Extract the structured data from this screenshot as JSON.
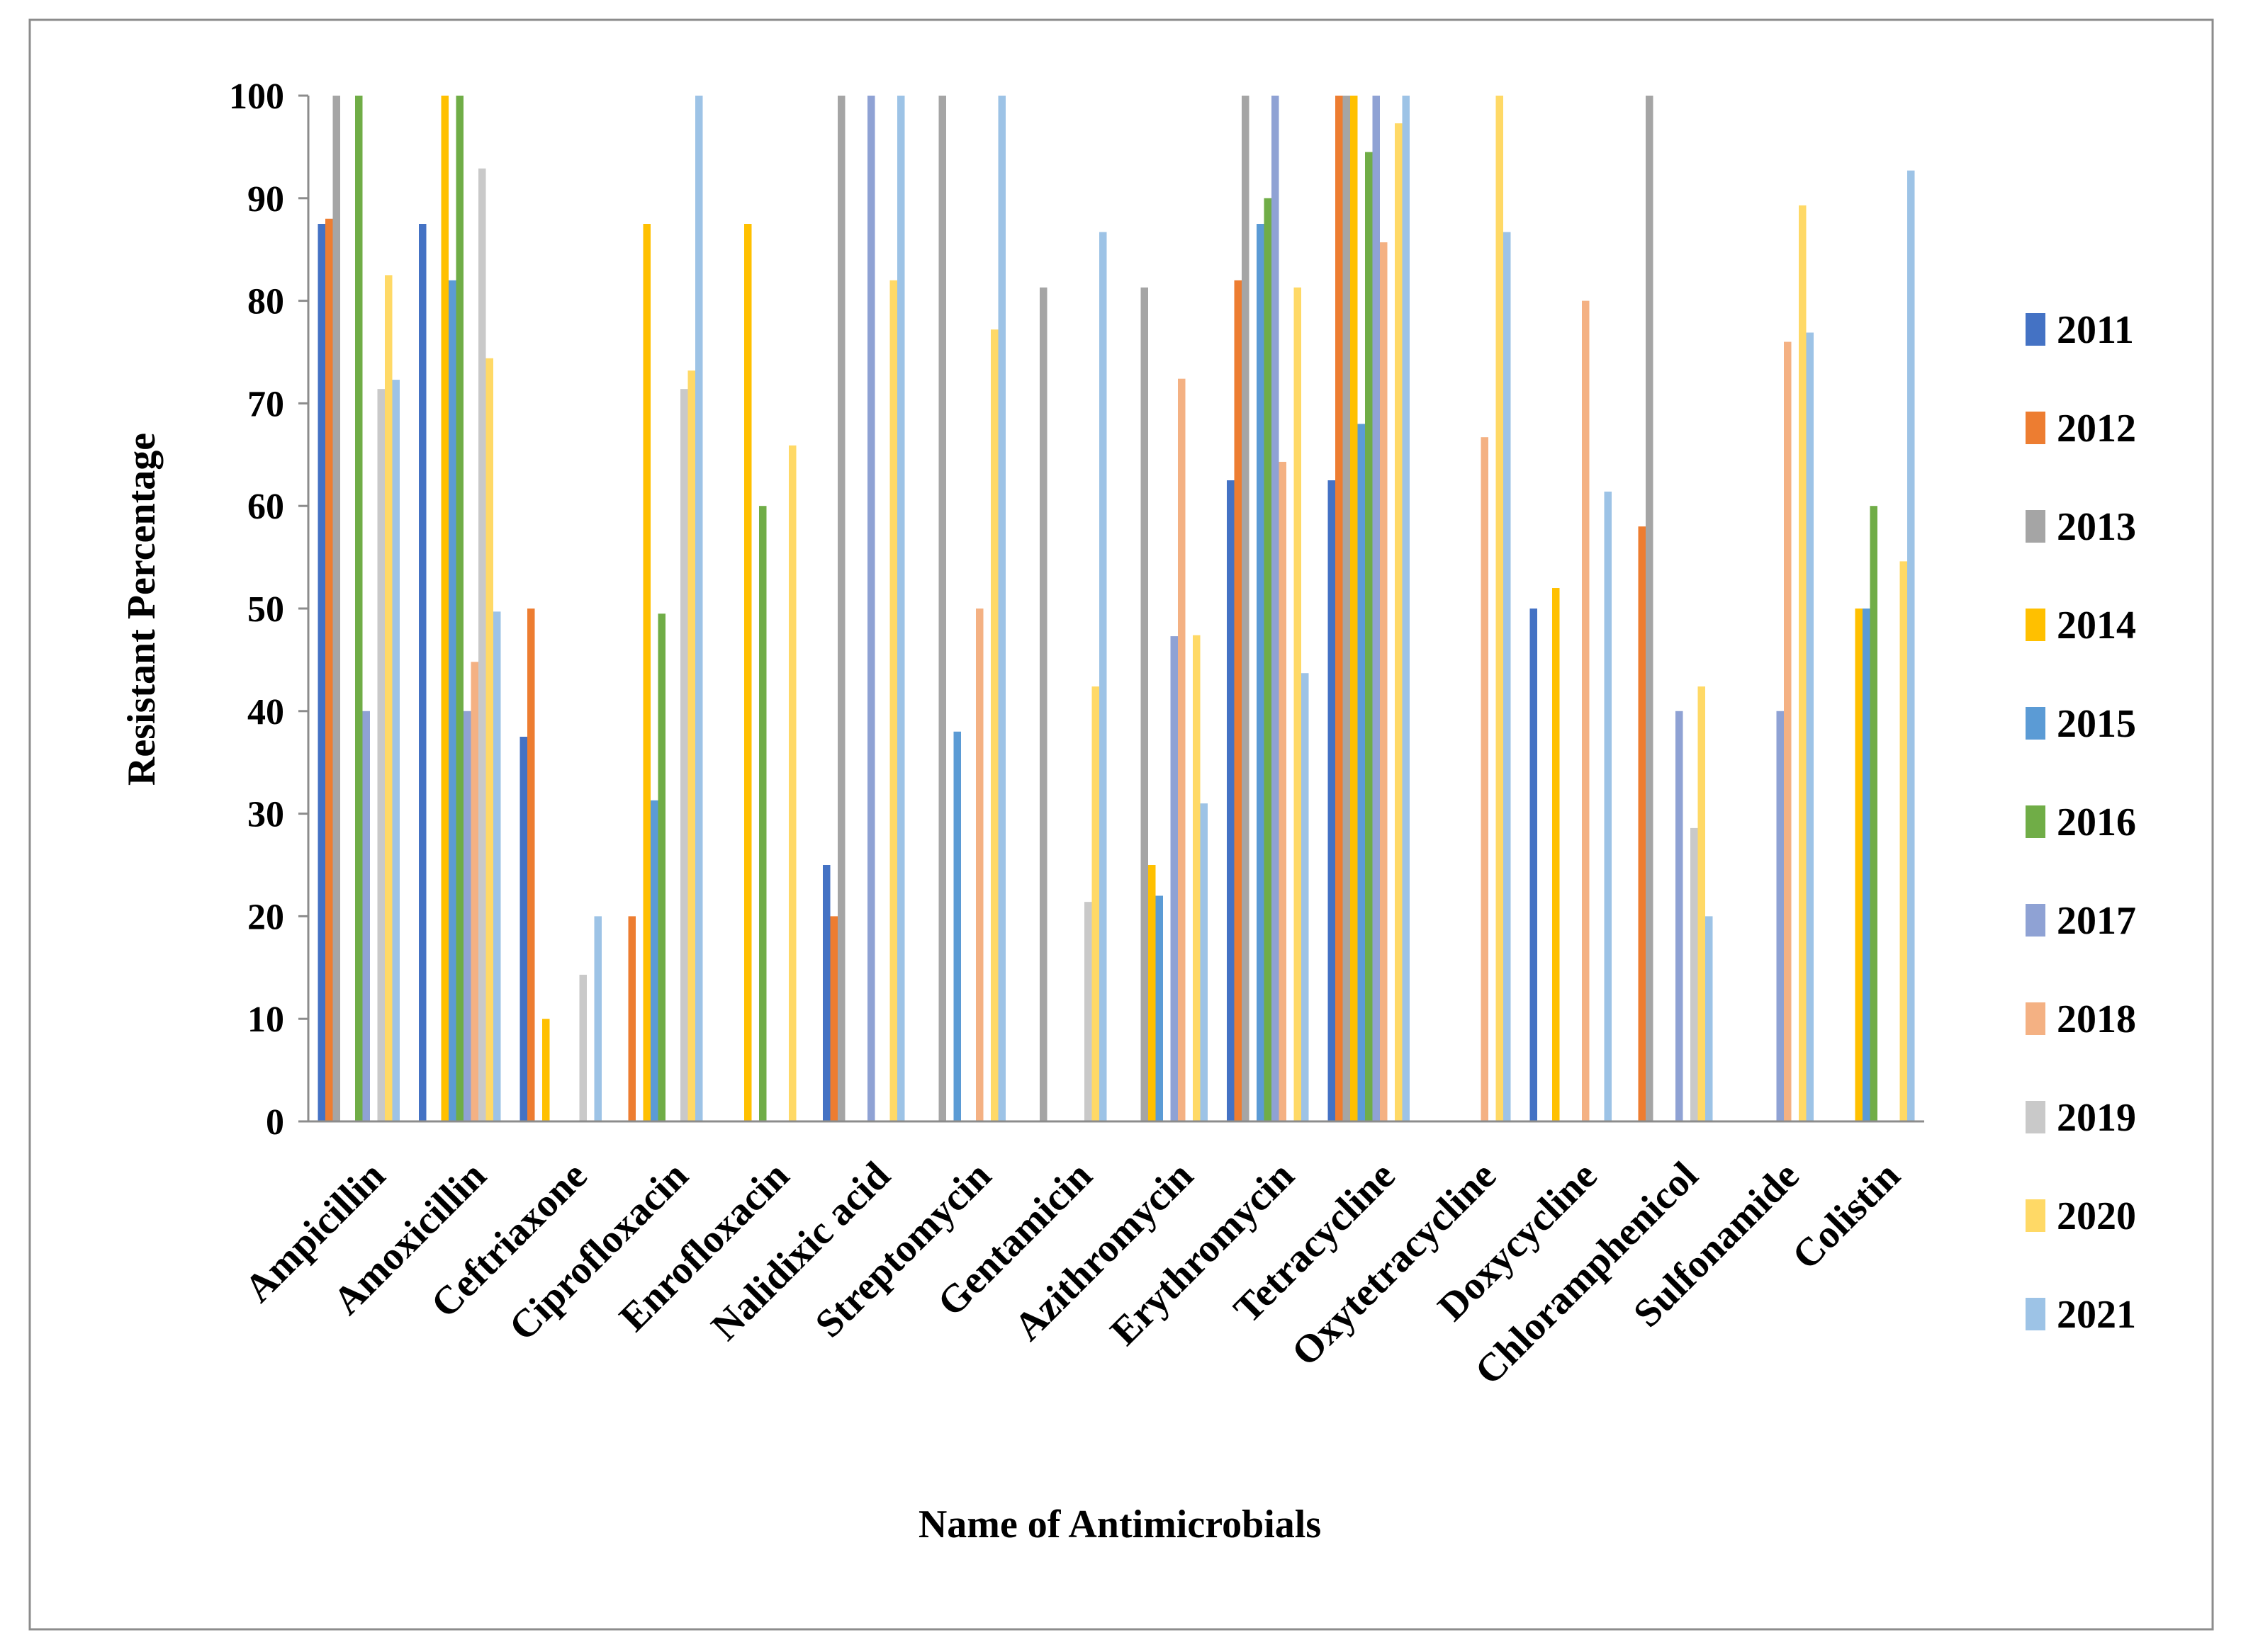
{
  "chart_data": {
    "type": "bar",
    "title": "",
    "xlabel": "Name of Antimicrobials",
    "ylabel": "Resistant Percentage",
    "ylim": [
      0,
      100
    ],
    "yticks": [
      0,
      10,
      20,
      30,
      40,
      50,
      60,
      70,
      80,
      90,
      100
    ],
    "grid": false,
    "legend_position": "right",
    "categories": [
      "Ampicillin",
      "Amoxicillin",
      "Ceftriaxone",
      "Ciprofloxacin",
      "Enrofloxacin",
      "Nalidixic acid",
      "Streptomycin",
      "Gentamicin",
      "Azithromycin",
      "Erythromycin",
      "Tetracycline",
      "Oxytetracycline",
      "Doxycycline",
      "Chloramphenicol",
      "Sulfonamide",
      "Colistin"
    ],
    "series": [
      {
        "name": "2011",
        "color": "#4472C4",
        "values": [
          87.5,
          87.5,
          37.5,
          0,
          0,
          25,
          0,
          0,
          0,
          62.5,
          62.5,
          0,
          50,
          0,
          0,
          0
        ]
      },
      {
        "name": "2012",
        "color": "#ED7D31",
        "values": [
          88,
          0,
          50,
          20,
          0,
          20,
          0,
          0,
          0,
          82,
          100,
          0,
          0,
          58,
          0,
          0
        ]
      },
      {
        "name": "2013",
        "color": "#A5A5A5",
        "values": [
          100,
          0,
          0,
          0,
          0,
          100,
          100,
          81.3,
          81.3,
          100,
          100,
          0,
          0,
          100,
          0,
          0
        ]
      },
      {
        "name": "2014",
        "color": "#FFC000",
        "values": [
          0,
          100,
          10,
          87.5,
          87.5,
          0,
          0,
          0,
          25,
          0,
          100,
          0,
          52,
          0,
          0,
          50
        ]
      },
      {
        "name": "2015",
        "color": "#5B9BD5",
        "values": [
          0,
          82,
          0,
          31.3,
          0,
          0,
          38,
          0,
          22,
          87.5,
          68,
          0,
          0,
          0,
          0,
          50
        ]
      },
      {
        "name": "2016",
        "color": "#70AD47",
        "values": [
          100,
          100,
          0,
          49.5,
          60,
          0,
          0,
          0,
          0,
          90,
          94.5,
          0,
          0,
          0,
          0,
          60
        ]
      },
      {
        "name": "2017",
        "color": "#8FA2D4",
        "values": [
          40,
          40,
          0,
          0,
          0,
          100,
          0,
          0,
          47.3,
          100,
          100,
          0,
          0,
          40,
          40,
          0
        ]
      },
      {
        "name": "2018",
        "color": "#F4B183",
        "values": [
          0,
          44.8,
          0,
          0,
          0,
          0,
          50,
          0,
          72.4,
          64.3,
          85.7,
          66.7,
          80,
          0,
          76,
          0
        ]
      },
      {
        "name": "2019",
        "color": "#C9C9C9",
        "values": [
          71.4,
          92.9,
          14.3,
          71.4,
          0,
          0,
          0,
          21.4,
          0,
          0,
          0,
          0,
          0,
          28.6,
          0,
          0
        ]
      },
      {
        "name": "2020",
        "color": "#FFD966",
        "values": [
          82.5,
          74.4,
          0,
          73.2,
          65.9,
          82,
          77.2,
          42.4,
          47.4,
          81.3,
          97.3,
          100,
          0,
          42.4,
          89.3,
          54.6
        ]
      },
      {
        "name": "2021",
        "color": "#9DC3E6",
        "values": [
          72.3,
          49.7,
          20,
          100,
          0,
          100,
          100,
          86.7,
          31,
          43.7,
          100,
          86.7,
          61.4,
          20,
          76.9,
          92.7
        ]
      }
    ]
  }
}
